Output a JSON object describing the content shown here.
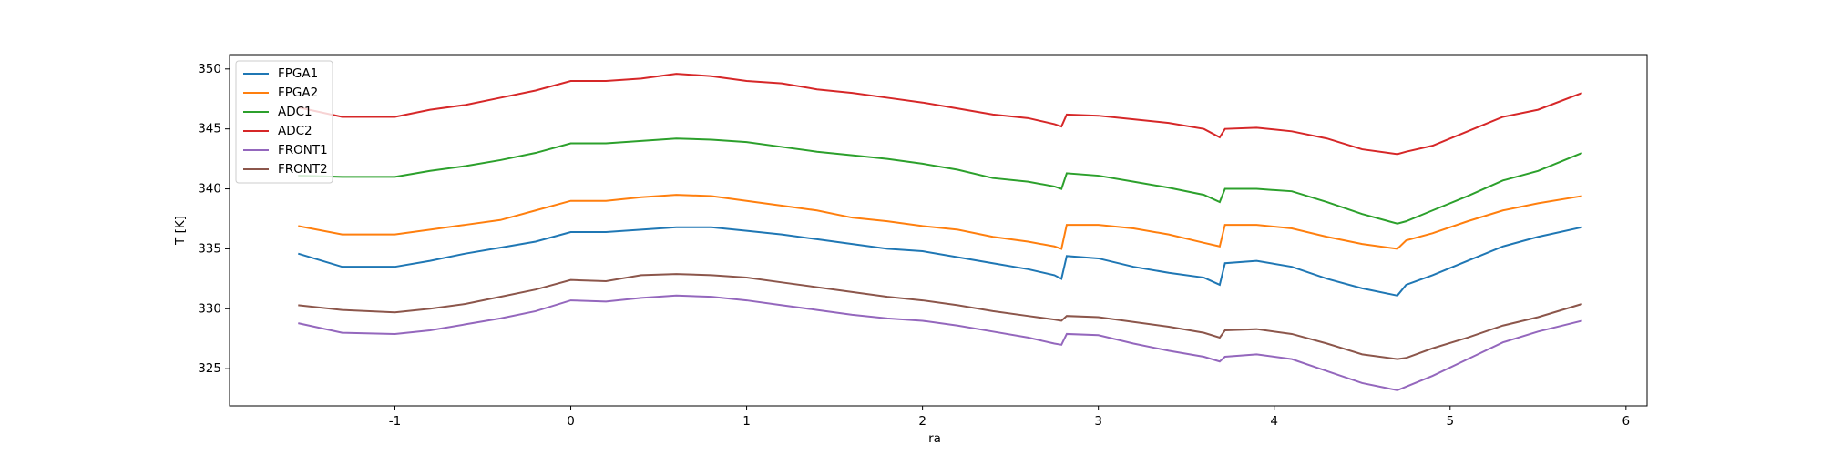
{
  "chart_data": {
    "type": "line",
    "x_label": "ra",
    "y_label": "T [K]",
    "x": [
      -1.55,
      -1.3,
      -1.0,
      -0.8,
      -0.6,
      -0.4,
      -0.2,
      0,
      0.2,
      0.4,
      0.6,
      0.8,
      1.0,
      1.2,
      1.4,
      1.6,
      1.8,
      2.0,
      2.2,
      2.4,
      2.6,
      2.75,
      2.79,
      2.82,
      3.0,
      3.2,
      3.4,
      3.6,
      3.69,
      3.72,
      3.9,
      4.1,
      4.3,
      4.5,
      4.7,
      4.75,
      4.9,
      5.1,
      5.3,
      5.5,
      5.75
    ],
    "series": [
      {
        "name": "FPGA1",
        "color": "#1f77b4",
        "values": [
          334.6,
          333.5,
          333.5,
          334.0,
          334.6,
          335.1,
          335.6,
          336.4,
          336.4,
          336.6,
          336.8,
          336.8,
          336.5,
          336.2,
          335.8,
          335.4,
          335.0,
          334.8,
          334.3,
          333.8,
          333.3,
          332.8,
          332.5,
          334.4,
          334.2,
          333.5,
          333.0,
          332.6,
          332.0,
          333.8,
          334.0,
          333.5,
          332.5,
          331.7,
          331.1,
          332.0,
          332.8,
          334.0,
          335.2,
          336.0,
          336.8
        ]
      },
      {
        "name": "FPGA2",
        "color": "#ff7f0e",
        "values": [
          336.9,
          336.2,
          336.2,
          336.6,
          337.0,
          337.4,
          338.2,
          339.0,
          339.0,
          339.3,
          339.5,
          339.4,
          339.0,
          338.6,
          338.2,
          337.6,
          337.3,
          336.9,
          336.6,
          336.0,
          335.6,
          335.2,
          335.0,
          337.0,
          337.0,
          336.7,
          336.2,
          335.5,
          335.2,
          337.0,
          337.0,
          336.7,
          336.0,
          335.4,
          335.0,
          335.7,
          336.3,
          337.3,
          338.2,
          338.8,
          339.4
        ]
      },
      {
        "name": "ADC1",
        "color": "#2ca02c",
        "values": [
          341.1,
          341.0,
          341.0,
          341.5,
          341.9,
          342.4,
          343.0,
          343.8,
          343.8,
          344.0,
          344.2,
          344.1,
          343.9,
          343.5,
          343.1,
          342.8,
          342.5,
          342.1,
          341.6,
          340.9,
          340.6,
          340.2,
          340.0,
          341.3,
          341.1,
          340.6,
          340.1,
          339.5,
          338.9,
          340.0,
          340.0,
          339.8,
          338.9,
          337.9,
          337.1,
          337.3,
          338.2,
          339.4,
          340.7,
          341.5,
          343.0
        ]
      },
      {
        "name": "ADC2",
        "color": "#d62728",
        "values": [
          346.8,
          346.0,
          346.0,
          346.6,
          347.0,
          347.6,
          348.2,
          349.0,
          349.0,
          349.2,
          349.6,
          349.4,
          349.0,
          348.8,
          348.3,
          348.0,
          347.6,
          347.2,
          346.7,
          346.2,
          345.9,
          345.4,
          345.2,
          346.2,
          346.1,
          345.8,
          345.5,
          345.0,
          344.3,
          345.0,
          345.1,
          344.8,
          344.2,
          343.3,
          342.9,
          343.1,
          343.6,
          344.8,
          346.0,
          346.6,
          348.0
        ]
      },
      {
        "name": "FRONT1",
        "color": "#9467bd",
        "values": [
          328.8,
          328.0,
          327.9,
          328.2,
          328.7,
          329.2,
          329.8,
          330.7,
          330.6,
          330.9,
          331.1,
          331.0,
          330.7,
          330.3,
          329.9,
          329.5,
          329.2,
          329.0,
          328.6,
          328.1,
          327.6,
          327.1,
          327.0,
          327.9,
          327.8,
          327.1,
          326.5,
          326.0,
          325.6,
          326.0,
          326.2,
          325.8,
          324.8,
          323.8,
          323.2,
          323.5,
          324.4,
          325.8,
          327.2,
          328.1,
          329.0
        ]
      },
      {
        "name": "FRONT2",
        "color": "#8c564b",
        "values": [
          330.3,
          329.9,
          329.7,
          330.0,
          330.4,
          331.0,
          331.6,
          332.4,
          332.3,
          332.8,
          332.9,
          332.8,
          332.6,
          332.2,
          331.8,
          331.4,
          331.0,
          330.7,
          330.3,
          329.8,
          329.4,
          329.1,
          329.0,
          329.4,
          329.3,
          328.9,
          328.5,
          328.0,
          327.6,
          328.2,
          328.3,
          327.9,
          327.1,
          326.2,
          325.8,
          325.9,
          326.7,
          327.6,
          328.6,
          329.3,
          330.4
        ]
      }
    ],
    "xlim": [
      -1.94,
      6.12
    ],
    "ylim": [
      321.9,
      351.2
    ],
    "xticks": [
      -1,
      0,
      1,
      2,
      3,
      4,
      5,
      6
    ],
    "yticks": [
      325,
      330,
      335,
      340,
      345,
      350
    ],
    "legend": "upper left"
  }
}
